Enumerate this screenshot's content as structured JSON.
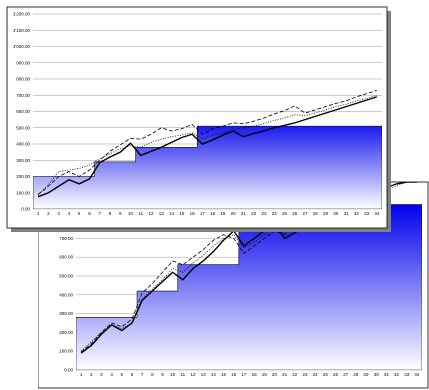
{
  "chart_data": [
    {
      "type": "line",
      "categories": [
        1,
        2,
        3,
        4,
        5,
        6,
        7,
        8,
        9,
        10,
        11,
        12,
        13,
        14,
        15,
        16,
        17,
        18,
        19,
        20,
        21,
        22,
        23,
        24,
        25,
        26,
        27,
        28,
        29,
        30,
        31,
        32,
        33,
        34
      ],
      "ylim": [
        0,
        1200
      ],
      "yticks": [
        "0.00",
        "100.00",
        "200.00",
        "300.00",
        "400.00",
        "500.00",
        "600.00",
        "700.00",
        "800.00",
        "900.00",
        "1'000.00",
        "1'100.00",
        "1'200.00"
      ],
      "grid": true,
      "colors": {
        "fill_top": "#1a1af0",
        "fill_bottom": "#ffffff",
        "line": "#000000",
        "shadow": "#808080"
      },
      "series": [
        {
          "style": "solid",
          "values": [
            75,
            100,
            140,
            180,
            155,
            185,
            285,
            320,
            350,
            405,
            330,
            355,
            380,
            410,
            440,
            460,
            400,
            425,
            455,
            480,
            445,
            465,
            480,
            500,
            515,
            530,
            550,
            570,
            590,
            610,
            630,
            650,
            670,
            690
          ]
        },
        {
          "style": "dashed",
          "values": [
            90,
            140,
            200,
            230,
            200,
            240,
            300,
            355,
            395,
            435,
            430,
            460,
            500,
            480,
            495,
            520,
            460,
            495,
            510,
            530,
            525,
            540,
            560,
            585,
            605,
            635,
            590,
            610,
            630,
            650,
            665,
            690,
            710,
            730
          ]
        },
        {
          "style": "dotted",
          "values": [
            85,
            150,
            230,
            240,
            250,
            270,
            310,
            340,
            370,
            390,
            380,
            410,
            430,
            445,
            455,
            470,
            430,
            455,
            470,
            490,
            500,
            510,
            525,
            545,
            560,
            580,
            575,
            590,
            610,
            630,
            645,
            665,
            680,
            700
          ]
        },
        {
          "style": "step-area",
          "values": [
            200,
            200,
            200,
            200,
            200,
            200,
            290,
            290,
            290,
            290,
            380,
            380,
            380,
            380,
            380,
            380,
            510,
            510,
            510,
            510,
            510,
            510,
            510,
            510,
            510,
            510,
            510,
            510,
            510,
            510,
            510,
            510,
            510,
            510
          ]
        }
      ]
    },
    {
      "type": "line",
      "categories": [
        1,
        2,
        3,
        4,
        5,
        6,
        7,
        8,
        9,
        10,
        11,
        12,
        13,
        14,
        15,
        16,
        17,
        18,
        19,
        20,
        21,
        22,
        23,
        24,
        25,
        26,
        27,
        28,
        29,
        30,
        31,
        32,
        33,
        34
      ],
      "ylim": [
        0,
        1000
      ],
      "yticks": [
        "0.00",
        "100.00",
        "200.00",
        "300.00",
        "400.00",
        "500.00",
        "600.00",
        "700.00",
        "800.00"
      ],
      "grid": true,
      "colors": {
        "fill_top": "#0000ee",
        "fill_bottom": "#ffffff",
        "line": "#000000"
      },
      "series": [
        {
          "style": "solid",
          "values": [
            90,
            130,
            190,
            240,
            210,
            250,
            370,
            420,
            470,
            520,
            480,
            540,
            580,
            630,
            690,
            740,
            660,
            700,
            740,
            780,
            700,
            730,
            760,
            790,
            820,
            850,
            880,
            910,
            930,
            950,
            970,
            990,
            1000,
            1000
          ]
        },
        {
          "style": "dashed",
          "values": [
            95,
            140,
            200,
            250,
            230,
            270,
            410,
            460,
            520,
            580,
            560,
            600,
            640,
            690,
            720,
            700,
            620,
            660,
            700,
            740,
            720,
            760,
            790,
            820,
            850,
            880,
            860,
            890,
            920,
            950,
            970,
            990,
            1000,
            1000
          ]
        },
        {
          "style": "dotted",
          "values": [
            100,
            150,
            200,
            240,
            220,
            250,
            380,
            430,
            480,
            540,
            520,
            570,
            610,
            660,
            700,
            720,
            650,
            680,
            720,
            760,
            730,
            760,
            790,
            820,
            850,
            870,
            850,
            880,
            910,
            940,
            960,
            980,
            1000,
            1000
          ]
        },
        {
          "style": "step-area",
          "values": [
            280,
            280,
            280,
            280,
            280,
            280,
            420,
            420,
            420,
            420,
            560,
            560,
            560,
            560,
            560,
            560,
            880,
            880,
            880,
            880,
            880,
            880,
            880,
            880,
            880,
            880,
            880,
            880,
            880,
            880,
            880,
            880,
            880,
            880
          ]
        }
      ]
    }
  ]
}
